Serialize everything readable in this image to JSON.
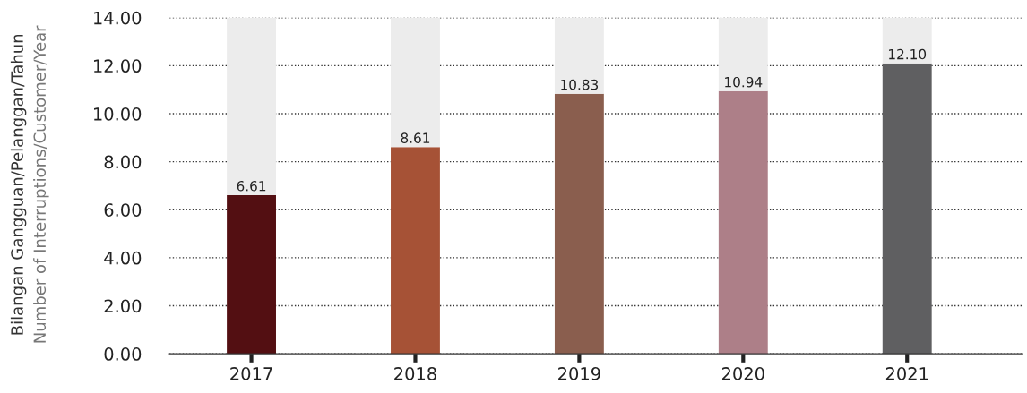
{
  "chart_data": {
    "type": "bar",
    "stacked": true,
    "ylabel": "Bilangan Gangguan/Pelanggan/Tahun\nNumber of Interruptions/Customer/Year",
    "categories": [
      "2017",
      "2018",
      "2019",
      "2020",
      "2021"
    ],
    "series": [
      {
        "colors": [
          "#530f12",
          "#a65236",
          "#8a5e4e",
          "#ad7f88",
          "#5f5f61"
        ],
        "values": [
          6.61,
          8.61,
          10.83,
          10.94,
          12.1
        ],
        "value_labels": [
          "6.61",
          "8.61",
          "10.83",
          "10.94",
          "12.10"
        ]
      },
      {
        "color": "#ececec",
        "values": [
          7.39,
          5.39,
          3.17,
          3.06,
          1.9
        ]
      }
    ],
    "ylim": [
      0,
      14
    ],
    "yticks": [
      {
        "value": 0,
        "label": "0.00"
      },
      {
        "value": 2,
        "label": "2.00"
      },
      {
        "value": 4,
        "label": "4.00"
      },
      {
        "value": 6,
        "label": "6.00"
      },
      {
        "value": 8,
        "label": "8.00"
      },
      {
        "value": 10,
        "label": "10.00"
      },
      {
        "value": 12,
        "label": "12.00"
      },
      {
        "value": 14,
        "label": "14.00"
      }
    ],
    "grid": "y",
    "line_style": "dotted"
  }
}
